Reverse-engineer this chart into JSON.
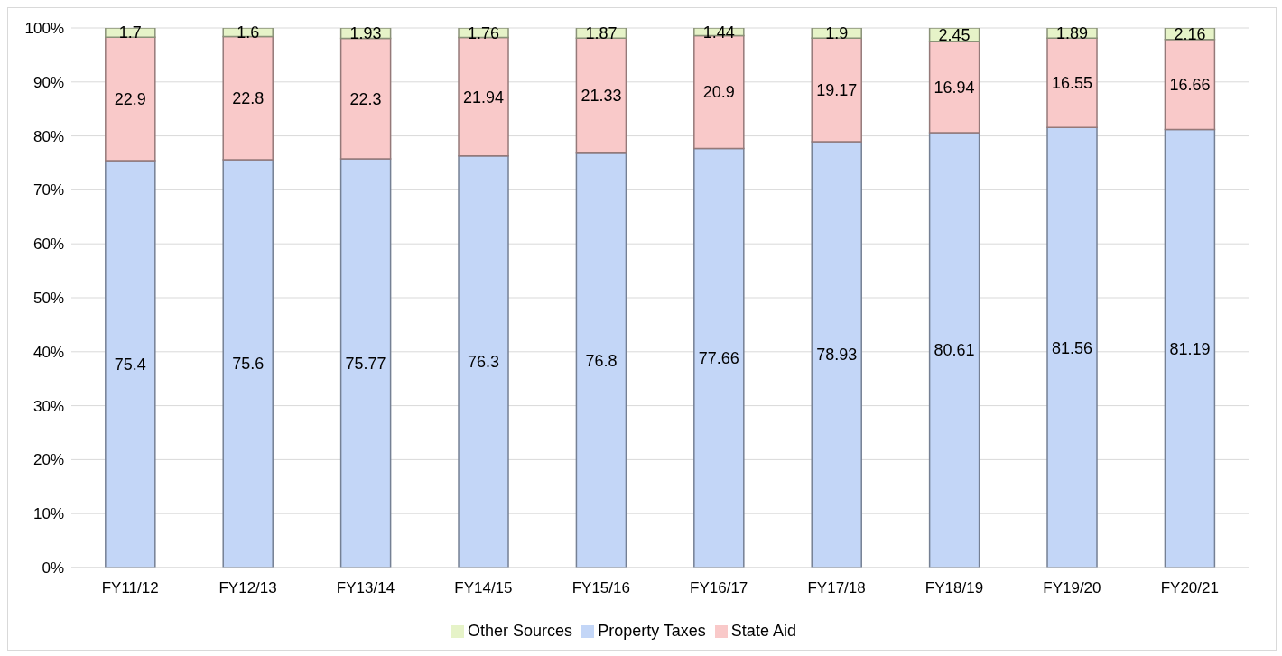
{
  "chart_data": {
    "type": "bar",
    "stacked": true,
    "categories": [
      "FY11/12",
      "FY12/13",
      "FY13/14",
      "FY14/15",
      "FY15/16",
      "FY16/17",
      "FY17/18",
      "FY18/19",
      "FY19/20",
      "FY20/21"
    ],
    "series": [
      {
        "name": "Property Taxes",
        "color": "#c3d6f7",
        "values": [
          75.4,
          75.6,
          75.77,
          76.3,
          76.8,
          77.66,
          78.93,
          80.61,
          81.56,
          81.19
        ]
      },
      {
        "name": "State Aid",
        "color": "#f9c9c9",
        "values": [
          22.9,
          22.8,
          22.3,
          21.94,
          21.33,
          20.9,
          19.17,
          16.94,
          16.55,
          16.66
        ]
      },
      {
        "name": "Other Sources",
        "color": "#e6f3c8",
        "values": [
          1.7,
          1.6,
          1.93,
          1.76,
          1.87,
          1.44,
          1.9,
          2.45,
          1.89,
          2.16
        ]
      }
    ],
    "ylim": [
      0,
      100
    ],
    "yticks": [
      {
        "value": 0,
        "label": "0%"
      },
      {
        "value": 10,
        "label": "10%"
      },
      {
        "value": 20,
        "label": "20%"
      },
      {
        "value": 30,
        "label": "30%"
      },
      {
        "value": 40,
        "label": "40%"
      },
      {
        "value": 50,
        "label": "50%"
      },
      {
        "value": 60,
        "label": "60%"
      },
      {
        "value": 70,
        "label": "70%"
      },
      {
        "value": 80,
        "label": "80%"
      },
      {
        "value": 90,
        "label": "90%"
      },
      {
        "value": 100,
        "label": "100%"
      }
    ],
    "grid": "y",
    "legend": "bottom",
    "data_labels": true
  }
}
